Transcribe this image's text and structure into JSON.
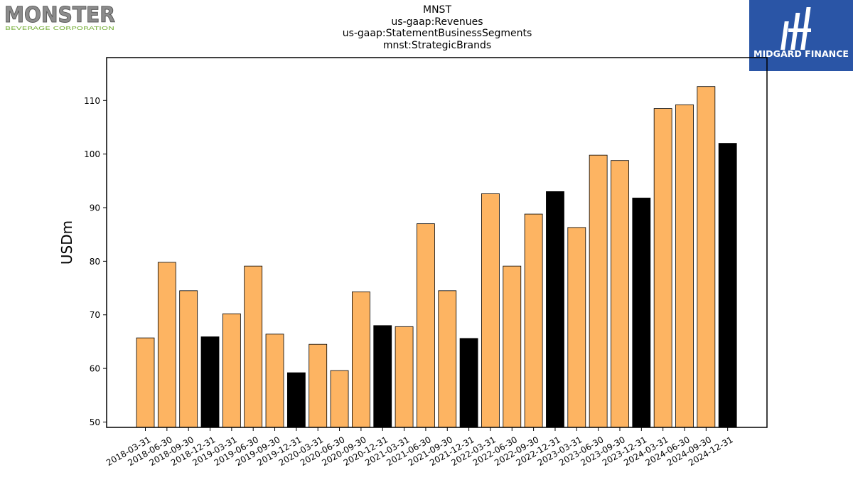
{
  "header": {
    "brand_left": {
      "name": "MONSTER",
      "tagline": "BEVERAGE CORPORATION"
    },
    "brand_right": {
      "name": "MIDGARD FINANCE",
      "icon": "midgard-logo-icon"
    }
  },
  "colors": {
    "bar_regular": "#fdb462",
    "bar_q4": "#000000",
    "edge": "#000000",
    "logo_right_bg": "#2a55a6"
  },
  "chart_data": {
    "type": "bar",
    "title_lines": [
      "MNST",
      "us-gaap:Revenues",
      "us-gaap:StatementBusinessSegments",
      "mnst:StrategicBrands"
    ],
    "xlabel": "",
    "ylabel": "USDm",
    "ylim": [
      49,
      118
    ],
    "yticks": [
      50,
      60,
      70,
      80,
      90,
      100,
      110
    ],
    "grid": false,
    "legend": "none",
    "highlight_rule": "Q4 (12-31) bars drawn in black",
    "categories": [
      "2018-03-31",
      "2018-06-30",
      "2018-09-30",
      "2018-12-31",
      "2019-03-31",
      "2019-06-30",
      "2019-09-30",
      "2019-12-31",
      "2020-03-31",
      "2020-06-30",
      "2020-09-30",
      "2020-12-31",
      "2021-03-31",
      "2021-06-30",
      "2021-09-30",
      "2021-12-31",
      "2022-03-31",
      "2022-06-30",
      "2022-09-30",
      "2022-12-31",
      "2023-03-31",
      "2023-06-30",
      "2023-09-30",
      "2023-12-31",
      "2024-03-31",
      "2024-06-30",
      "2024-09-30",
      "2024-12-31"
    ],
    "values": [
      65.7,
      79.8,
      74.5,
      65.9,
      70.2,
      79.1,
      66.4,
      59.2,
      64.5,
      59.6,
      74.3,
      68.0,
      67.8,
      87.0,
      74.5,
      65.6,
      92.6,
      79.1,
      88.8,
      93.0,
      86.3,
      99.8,
      98.8,
      91.8,
      108.5,
      109.2,
      112.6,
      102.0
    ]
  }
}
